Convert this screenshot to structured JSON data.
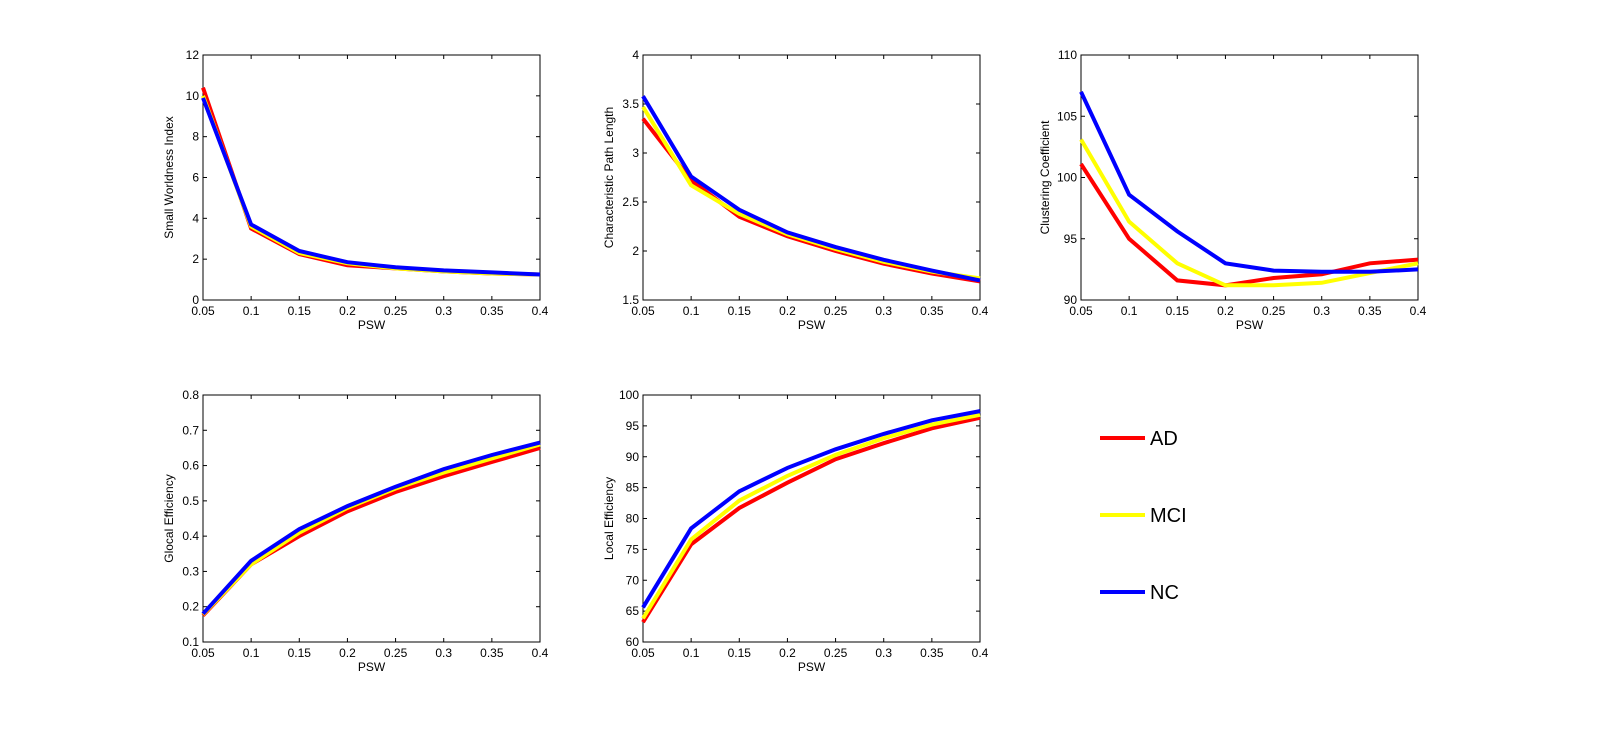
{
  "chart_data": [
    {
      "type": "line",
      "title": "",
      "xlabel": "PSW",
      "ylabel": "Small Worldness Index",
      "x": [
        0.05,
        0.1,
        0.15,
        0.2,
        0.25,
        0.3,
        0.35,
        0.4
      ],
      "xlim": [
        0.05,
        0.4
      ],
      "ylim": [
        0,
        12
      ],
      "xticks": [
        "0.05",
        "0.1",
        "0.15",
        "0.2",
        "0.25",
        "0.3",
        "0.35",
        "0.4"
      ],
      "yticks": [
        "0",
        "2",
        "4",
        "6",
        "8",
        "10",
        "12"
      ],
      "series": [
        {
          "name": "AD",
          "values": [
            10.4,
            3.5,
            2.25,
            1.7,
            1.55,
            1.4,
            1.3,
            1.25
          ]
        },
        {
          "name": "MCI",
          "values": [
            10.0,
            3.6,
            2.3,
            1.8,
            1.55,
            1.4,
            1.3,
            1.25
          ]
        },
        {
          "name": "NC",
          "values": [
            9.9,
            3.7,
            2.4,
            1.85,
            1.6,
            1.45,
            1.35,
            1.25
          ]
        }
      ]
    },
    {
      "type": "line",
      "title": "",
      "xlabel": "PSW",
      "ylabel": "Characteristic Path Length",
      "x": [
        0.05,
        0.1,
        0.15,
        0.2,
        0.25,
        0.3,
        0.35,
        0.4
      ],
      "xlim": [
        0.05,
        0.4
      ],
      "ylim": [
        1.5,
        4
      ],
      "xticks": [
        "0.05",
        "0.1",
        "0.15",
        "0.2",
        "0.25",
        "0.3",
        "0.35",
        "0.4"
      ],
      "yticks": [
        "1.5",
        "2",
        "2.5",
        "3",
        "3.5",
        "4"
      ],
      "series": [
        {
          "name": "AD",
          "values": [
            3.35,
            2.72,
            2.35,
            2.15,
            2.0,
            1.87,
            1.77,
            1.69
          ]
        },
        {
          "name": "MCI",
          "values": [
            3.47,
            2.67,
            2.38,
            2.17,
            2.02,
            1.89,
            1.79,
            1.72
          ]
        },
        {
          "name": "NC",
          "values": [
            3.58,
            2.76,
            2.42,
            2.19,
            2.04,
            1.91,
            1.8,
            1.7
          ]
        }
      ]
    },
    {
      "type": "line",
      "title": "",
      "xlabel": "PSW",
      "ylabel": "Clustering Coefficient",
      "x": [
        0.05,
        0.1,
        0.15,
        0.2,
        0.25,
        0.3,
        0.35,
        0.4
      ],
      "xlim": [
        0.05,
        0.4
      ],
      "ylim": [
        90,
        110
      ],
      "xticks": [
        "0.05",
        "0.1",
        "0.15",
        "0.2",
        "0.25",
        "0.3",
        "0.35",
        "0.4"
      ],
      "yticks": [
        "90",
        "95",
        "100",
        "105",
        "110"
      ],
      "series": [
        {
          "name": "AD",
          "values": [
            101.1,
            95.0,
            91.6,
            91.2,
            91.8,
            92.1,
            93.0,
            93.3
          ]
        },
        {
          "name": "MCI",
          "values": [
            103.1,
            96.4,
            93.0,
            91.2,
            91.2,
            91.4,
            92.2,
            93.0
          ]
        },
        {
          "name": "NC",
          "values": [
            107.0,
            98.6,
            95.6,
            93.0,
            92.4,
            92.3,
            92.3,
            92.5
          ]
        }
      ]
    },
    {
      "type": "line",
      "title": "",
      "xlabel": "PSW",
      "ylabel": "Glocal Efficiency",
      "x": [
        0.05,
        0.1,
        0.15,
        0.2,
        0.25,
        0.3,
        0.35,
        0.4
      ],
      "xlim": [
        0.05,
        0.4
      ],
      "ylim": [
        0.1,
        0.8
      ],
      "xticks": [
        "0.05",
        "0.1",
        "0.15",
        "0.2",
        "0.25",
        "0.3",
        "0.35",
        "0.4"
      ],
      "yticks": [
        "0.1",
        "0.2",
        "0.3",
        "0.4",
        "0.5",
        "0.6",
        "0.7",
        "0.8"
      ],
      "series": [
        {
          "name": "AD",
          "values": [
            0.175,
            0.32,
            0.4,
            0.47,
            0.525,
            0.57,
            0.61,
            0.65
          ]
        },
        {
          "name": "MCI",
          "values": [
            0.178,
            0.32,
            0.41,
            0.48,
            0.535,
            0.58,
            0.62,
            0.66
          ]
        },
        {
          "name": "NC",
          "values": [
            0.18,
            0.33,
            0.42,
            0.485,
            0.54,
            0.59,
            0.63,
            0.665
          ]
        }
      ]
    },
    {
      "type": "line",
      "title": "",
      "xlabel": "PSW",
      "ylabel": "Local Efficiency",
      "x": [
        0.05,
        0.1,
        0.15,
        0.2,
        0.25,
        0.3,
        0.35,
        0.4
      ],
      "xlim": [
        0.05,
        0.4
      ],
      "ylim": [
        60,
        100
      ],
      "xticks": [
        "0.05",
        "0.1",
        "0.15",
        "0.2",
        "0.25",
        "0.3",
        "0.35",
        "0.4"
      ],
      "yticks": [
        "60",
        "65",
        "70",
        "75",
        "80",
        "85",
        "90",
        "95",
        "100"
      ],
      "series": [
        {
          "name": "AD",
          "values": [
            63.2,
            75.8,
            81.7,
            85.8,
            89.6,
            92.2,
            94.6,
            96.3
          ]
        },
        {
          "name": "MCI",
          "values": [
            63.8,
            76.6,
            82.9,
            86.9,
            90.3,
            93.0,
            95.2,
            96.8
          ]
        },
        {
          "name": "NC",
          "values": [
            65.6,
            78.4,
            84.4,
            88.2,
            91.2,
            93.7,
            95.9,
            97.4
          ]
        }
      ]
    }
  ],
  "legend": {
    "placement": "right",
    "entries": [
      {
        "label": "AD",
        "color": "#ff0000"
      },
      {
        "label": "MCI",
        "color": "#ffff00"
      },
      {
        "label": "NC",
        "color": "#0000ff"
      }
    ]
  },
  "colors": {
    "AD": "#ff0000",
    "MCI": "#ffff00",
    "NC": "#0000ff"
  }
}
